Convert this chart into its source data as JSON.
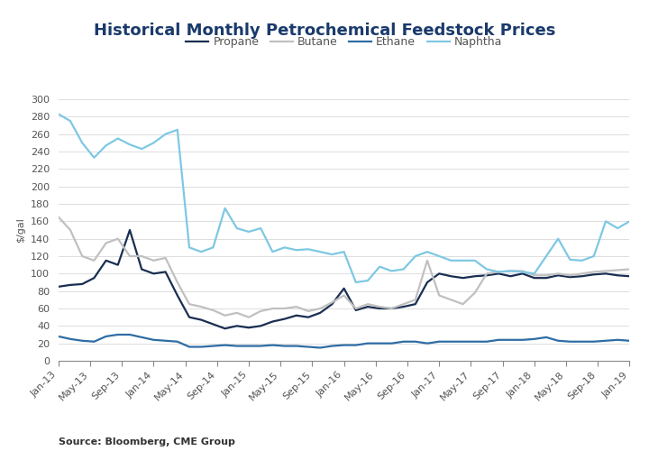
{
  "title": "Historical Monthly Petrochemical Feedstock Prices",
  "ylabel": "$/gal",
  "source": "Source: Bloomberg, CME Group",
  "ylim": [
    0,
    300
  ],
  "yticks": [
    0,
    20,
    40,
    60,
    80,
    100,
    120,
    140,
    160,
    180,
    200,
    220,
    240,
    260,
    280,
    300
  ],
  "xtick_labels": [
    "Jan-13",
    "May-13",
    "Sep-13",
    "Jan-14",
    "May-14",
    "Sep-14",
    "Jan-15",
    "May-15",
    "Sep-15",
    "Jan-16",
    "May-16",
    "Sep-16",
    "Jan-17",
    "May-17",
    "Sep-17",
    "Jan-18",
    "May-18",
    "Sep-18",
    "Jan-19"
  ],
  "series": {
    "Propane": {
      "color": "#1a2e52",
      "linewidth": 1.6,
      "values": [
        85,
        87,
        88,
        95,
        115,
        110,
        150,
        105,
        100,
        102,
        75,
        50,
        47,
        42,
        37,
        40,
        38,
        40,
        45,
        48,
        52,
        50,
        55,
        65,
        83,
        58,
        62,
        60,
        60,
        62,
        65,
        90,
        100,
        97,
        95,
        97,
        98,
        100,
        97,
        100,
        95,
        95,
        98,
        96,
        97,
        99,
        100,
        98,
        97
      ]
    },
    "Butane": {
      "color": "#c0c0c0",
      "linewidth": 1.6,
      "values": [
        165,
        150,
        120,
        115,
        135,
        140,
        120,
        120,
        115,
        118,
        90,
        65,
        62,
        58,
        52,
        55,
        50,
        57,
        60,
        60,
        62,
        57,
        60,
        67,
        75,
        60,
        65,
        62,
        60,
        65,
        70,
        115,
        75,
        70,
        65,
        78,
        100,
        102,
        103,
        103,
        98,
        98,
        100,
        98,
        100,
        102,
        103,
        104,
        105
      ]
    },
    "Ethane": {
      "color": "#2e6da4",
      "linewidth": 1.6,
      "values": [
        28,
        25,
        23,
        22,
        28,
        30,
        30,
        27,
        24,
        23,
        22,
        16,
        16,
        17,
        18,
        17,
        17,
        17,
        18,
        17,
        17,
        16,
        15,
        17,
        18,
        18,
        20,
        20,
        20,
        22,
        22,
        20,
        22,
        22,
        22,
        22,
        22,
        24,
        24,
        24,
        25,
        27,
        23,
        22,
        22,
        22,
        23,
        24,
        23
      ]
    },
    "Naphtha": {
      "color": "#7ec8e3",
      "linewidth": 1.6,
      "values": [
        283,
        275,
        250,
        233,
        247,
        255,
        248,
        243,
        250,
        260,
        265,
        130,
        125,
        130,
        175,
        152,
        148,
        152,
        125,
        130,
        127,
        128,
        125,
        122,
        125,
        90,
        92,
        108,
        103,
        105,
        120,
        125,
        120,
        115,
        115,
        115,
        105,
        102,
        103,
        102,
        100,
        120,
        140,
        116,
        115,
        120,
        160,
        152,
        160
      ]
    }
  },
  "title_color": "#1a3a6b",
  "title_fontsize": 13,
  "legend_fontsize": 9,
  "axis_fontsize": 8,
  "background_color": "#ffffff"
}
